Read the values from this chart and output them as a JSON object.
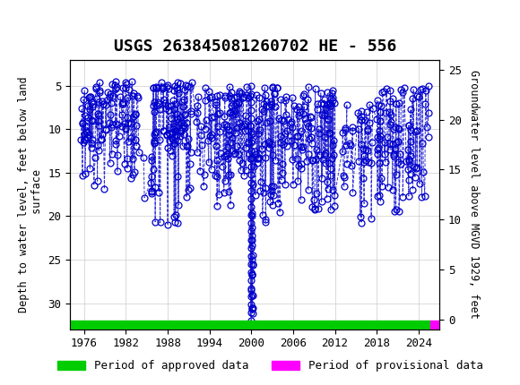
{
  "title": "USGS 263845081260702 HE - 556",
  "ylabel_left": "Depth to water level, feet below land\n surface",
  "ylabel_right": "Groundwater level above MGVD 1929, feet",
  "ylim_left": [
    33,
    2
  ],
  "ylim_right": [
    -1,
    26
  ],
  "xlim": [
    1974,
    2027
  ],
  "xticks": [
    1976,
    1982,
    1988,
    1994,
    2000,
    2006,
    2012,
    2018,
    2024
  ],
  "yticks_left": [
    5,
    10,
    15,
    20,
    25,
    30
  ],
  "yticks_right": [
    0,
    5,
    10,
    15,
    20,
    25
  ],
  "header_color": "#1a5c38",
  "plot_bg": "#ffffff",
  "grid_color": "#cccccc",
  "data_color": "#0000cc",
  "approved_color": "#00cc00",
  "provisional_color": "#ff00ff",
  "legend_approved": "Period of approved data",
  "legend_provisional": "Period of provisional data",
  "marker_size": 5,
  "line_width": 0.7,
  "title_fontsize": 13,
  "axis_fontsize": 8.5,
  "tick_fontsize": 9
}
